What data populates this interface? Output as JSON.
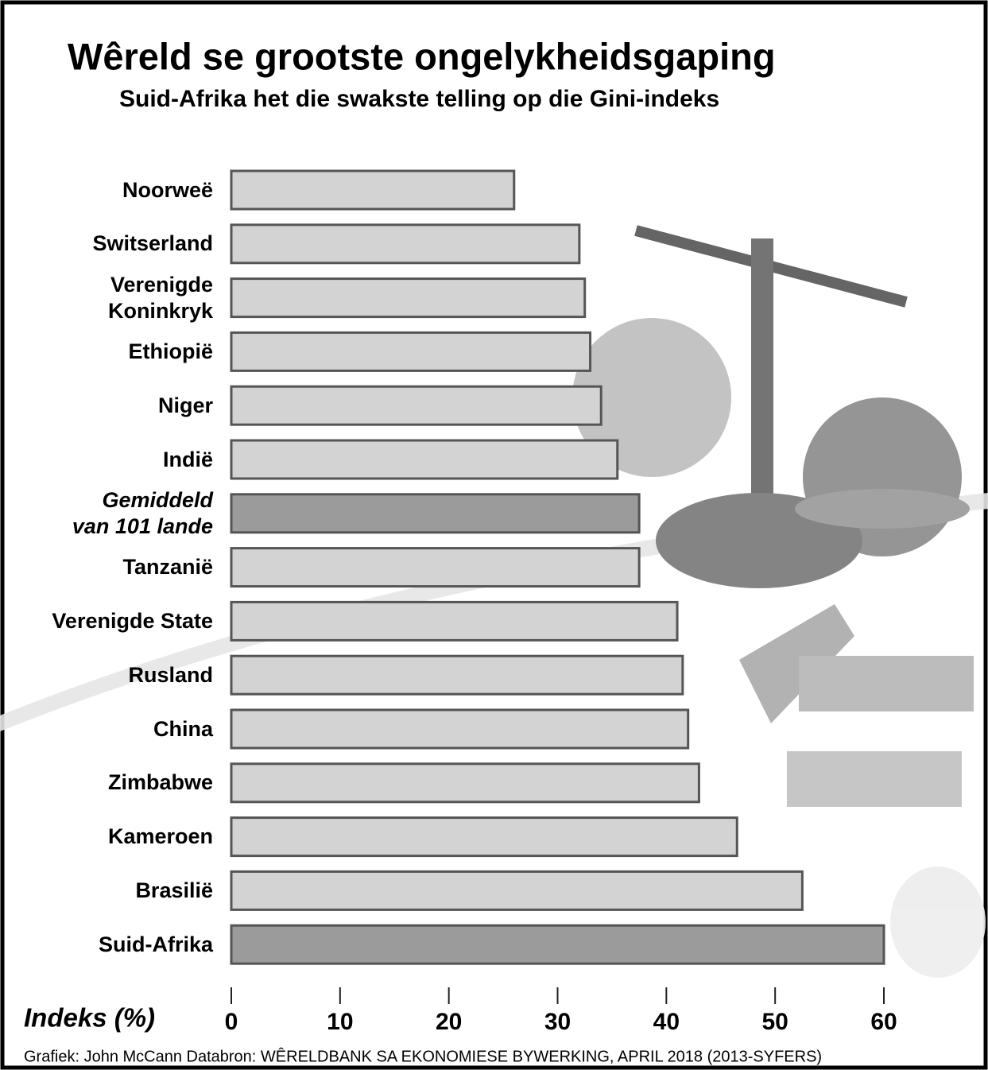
{
  "chart_data": {
    "type": "bar",
    "orientation": "horizontal",
    "title": "Wêreld se grootste ongelykheidsgaping",
    "subtitle": "Suid-Afrika het die swakste telling op die Gini-indeks",
    "xlabel": "Indeks (%)",
    "source": "Grafiek: John McCann Databron: WÊRELDBANK SA EKONOMIESE BYWERKING, APRIL 2018 (2013-SYFERS)",
    "categories": [
      "Noorweë",
      "Switserland",
      "Verenigde\nKoninkryk",
      "Ethiopië",
      "Niger",
      "Indië",
      "Gemiddeld\nvan 101 lande",
      "Tanzanië",
      "Verenigde State",
      "Rusland",
      "China",
      "Zimbabwe",
      "Kameroen",
      "Brasilië",
      "Suid-Afrika"
    ],
    "values": [
      26,
      32,
      32.5,
      33,
      34,
      35.5,
      37.5,
      37.5,
      41,
      41.5,
      42,
      43,
      46.5,
      52.5,
      60
    ],
    "colors": [
      "#d3d3d3",
      "#d3d3d3",
      "#d3d3d3",
      "#d3d3d3",
      "#d3d3d3",
      "#d3d3d3",
      "#9b9b9b",
      "#d3d3d3",
      "#d3d3d3",
      "#d3d3d3",
      "#d3d3d3",
      "#d3d3d3",
      "#d3d3d3",
      "#d3d3d3",
      "#9b9b9b"
    ],
    "xlim": [
      0,
      60
    ],
    "xticks": [
      0,
      10,
      20,
      30,
      40,
      50,
      60
    ],
    "grid": false
  }
}
